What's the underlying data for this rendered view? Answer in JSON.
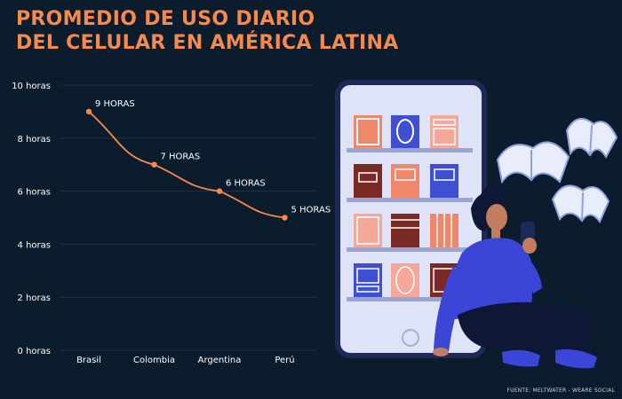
{
  "header": {
    "title_line1": "PROMEDIO DE USO DIARIO",
    "title_line2": "DEL CELULAR EN AMÉRICA LATINA"
  },
  "source": "FUENTE: MELTWATER - WEARE SOCIAL",
  "colors": {
    "background": "#0b1c2c",
    "accent": "#f6894c",
    "line": "#f6894c",
    "grid": "#1f3346",
    "text": "#ffffff"
  },
  "chart_data": {
    "type": "line",
    "title": "PROMEDIO DE USO DIARIO DEL CELULAR EN AMÉRICA LATINA",
    "categories": [
      "Brasil",
      "Colombia",
      "Argentina",
      "Perú"
    ],
    "values": [
      9,
      7,
      6,
      5
    ],
    "data_labels": [
      "9 HORAS",
      "7 HORAS",
      "6 HORAS",
      "5 HORAS"
    ],
    "y_ticks": [
      0,
      2,
      4,
      6,
      8,
      10
    ],
    "y_tick_labels": [
      "0 horas",
      "2 horas",
      "4 horas",
      "6 horas",
      "8 horas",
      "10 horas"
    ],
    "ylim": [
      0,
      10
    ],
    "xlabel": "",
    "ylabel": "",
    "grid": true
  },
  "illustration": {
    "icons": [
      "smartphone-icon",
      "bookshelf-icon",
      "open-book-icon",
      "woman-with-phone-icon"
    ]
  }
}
